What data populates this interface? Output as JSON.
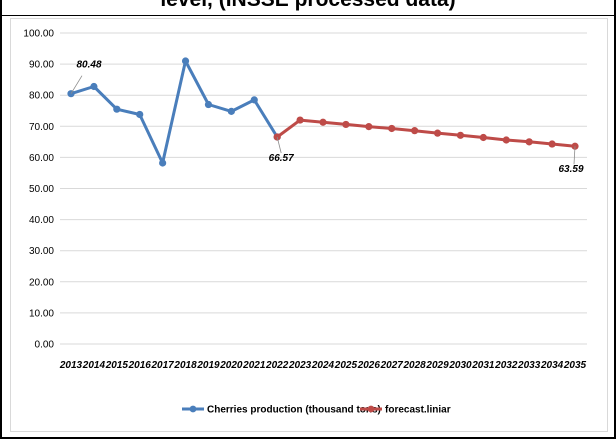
{
  "heading": "level, (INSSE processed data)",
  "colors": {
    "series_production": "#4a7ebb",
    "series_forecast": "#be4b48",
    "gridline": "#d9d9d9"
  },
  "chart_data": {
    "type": "line",
    "x": [
      "2013",
      "2014",
      "2015",
      "2016",
      "2017",
      "2018",
      "2019",
      "2020",
      "2021",
      "2022",
      "2023",
      "2024",
      "2025",
      "2026",
      "2027",
      "2028",
      "2029",
      "2030",
      "2031",
      "2032",
      "2033",
      "2034",
      "2035"
    ],
    "ylim": [
      0,
      100
    ],
    "yticks": [
      "0.00",
      "10.00",
      "20.00",
      "30.00",
      "40.00",
      "50.00",
      "60.00",
      "70.00",
      "80.00",
      "90.00",
      "100.00"
    ],
    "grid": true,
    "legend_position": "bottom",
    "series": [
      {
        "name": "Cherries production (thousand tons)",
        "color": "#4a7ebb",
        "values": [
          80.48,
          82.8,
          75.5,
          73.8,
          58.2,
          91.0,
          77.0,
          74.8,
          78.5,
          66.57,
          null,
          null,
          null,
          null,
          null,
          null,
          null,
          null,
          null,
          null,
          null,
          null,
          null
        ]
      },
      {
        "name": "forecast.liniar",
        "color": "#be4b48",
        "values": [
          null,
          null,
          null,
          null,
          null,
          null,
          null,
          null,
          null,
          66.57,
          72.0,
          71.3,
          70.6,
          69.9,
          69.3,
          68.6,
          67.8,
          67.1,
          66.4,
          65.6,
          65.0,
          64.3,
          63.59
        ]
      }
    ],
    "annotations": [
      {
        "text": "80.48",
        "x": "2013",
        "value": 80.48
      },
      {
        "text": "66.57",
        "x": "2022",
        "value": 66.57
      },
      {
        "text": "63.59",
        "x": "2035",
        "value": 63.59
      }
    ]
  }
}
